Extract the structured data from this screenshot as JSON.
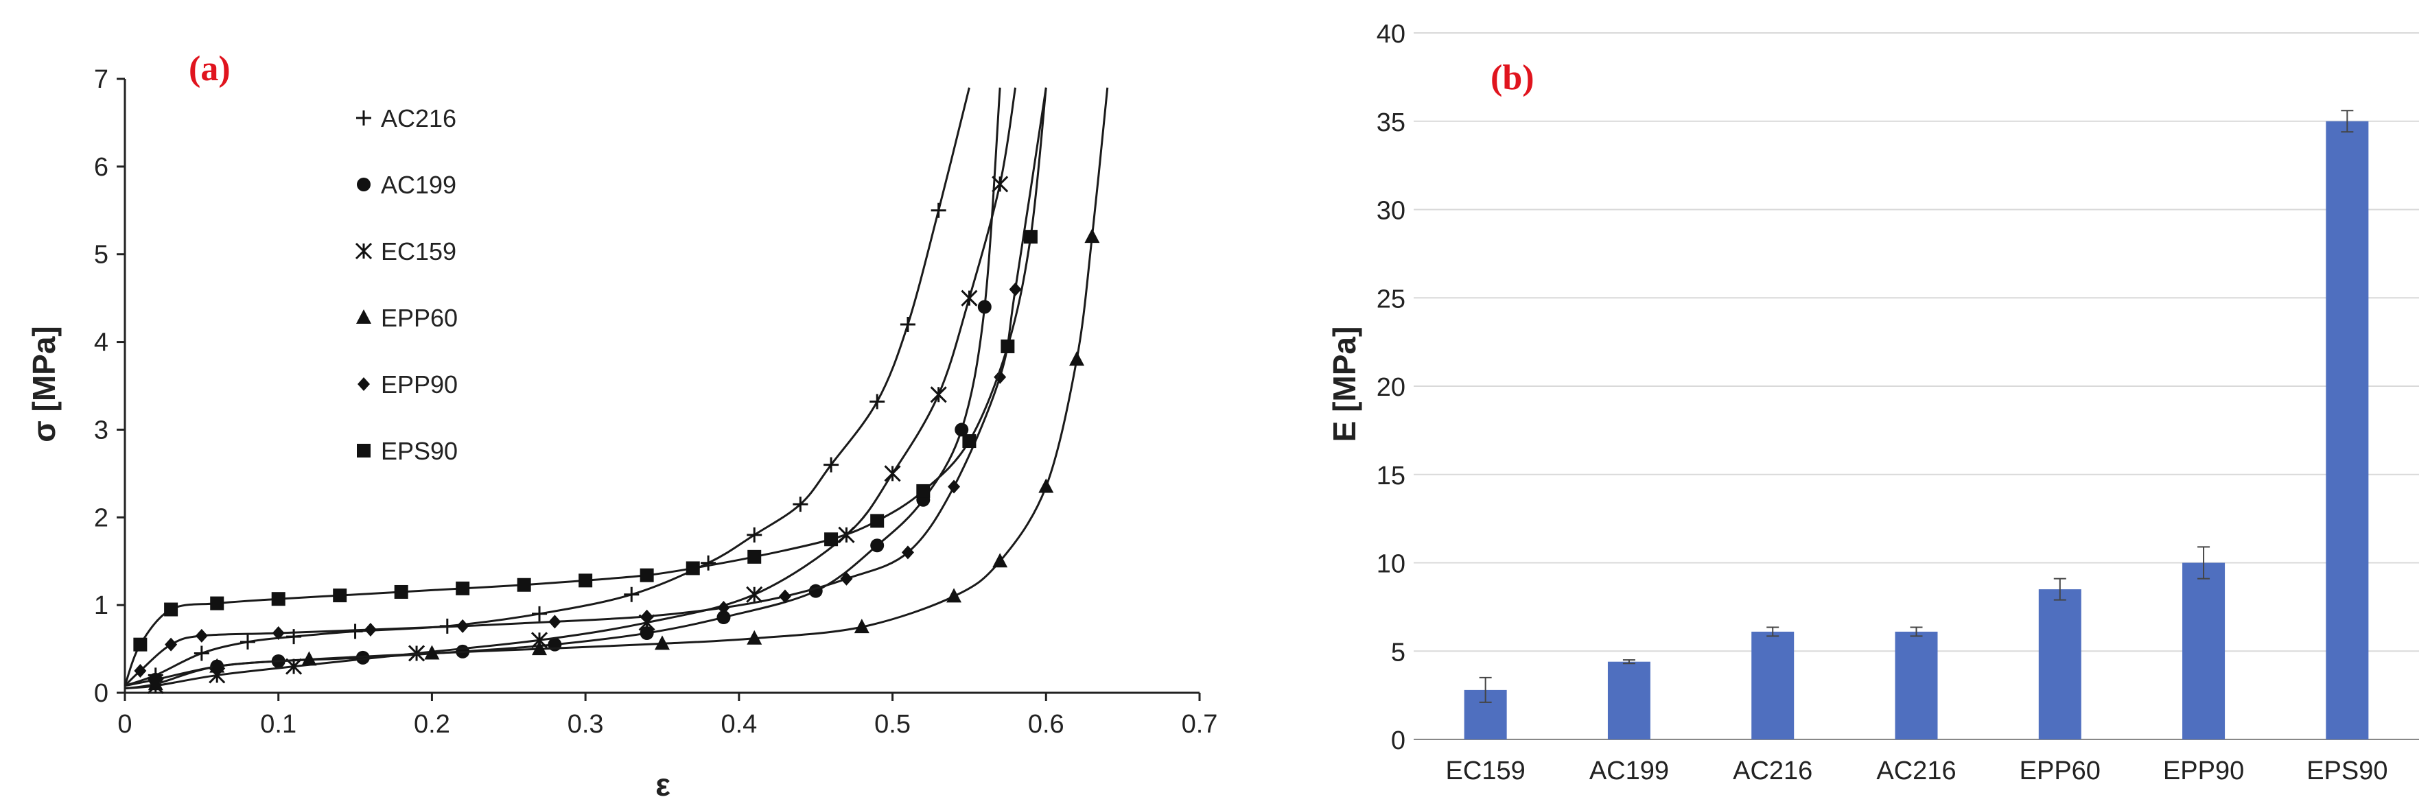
{
  "chart_data": [
    {
      "type": "line",
      "panel_label": "(a)",
      "xlabel": "ε",
      "ylabel": "σ [MPa]",
      "xlim": [
        0,
        0.7
      ],
      "ylim": [
        0,
        7
      ],
      "xticks": [
        "0",
        "0.1",
        "0.2",
        "0.3",
        "0.4",
        "0.5",
        "0.6",
        "0.7"
      ],
      "yticks": [
        "0",
        "1",
        "2",
        "3",
        "4",
        "5",
        "6",
        "7"
      ],
      "grid": false,
      "legend_position": "top-left",
      "series": [
        {
          "name": "AC216",
          "marker": "plus",
          "x": [
            0,
            0.02,
            0.05,
            0.08,
            0.11,
            0.15,
            0.21,
            0.27,
            0.33,
            0.38,
            0.41,
            0.44,
            0.46,
            0.49,
            0.51,
            0.53,
            0.55
          ],
          "y": [
            0.08,
            0.2,
            0.45,
            0.58,
            0.64,
            0.7,
            0.76,
            0.9,
            1.12,
            1.48,
            1.8,
            2.15,
            2.6,
            3.32,
            4.2,
            5.5,
            6.9
          ]
        },
        {
          "name": "AC199",
          "marker": "circle",
          "x": [
            0,
            0.02,
            0.06,
            0.1,
            0.155,
            0.22,
            0.28,
            0.34,
            0.39,
            0.45,
            0.49,
            0.52,
            0.545,
            0.56,
            0.57
          ],
          "y": [
            0.08,
            0.15,
            0.3,
            0.36,
            0.4,
            0.47,
            0.55,
            0.68,
            0.86,
            1.16,
            1.68,
            2.2,
            3.0,
            4.4,
            6.9
          ]
        },
        {
          "name": "EC159",
          "marker": "asterisk",
          "x": [
            0,
            0.02,
            0.06,
            0.11,
            0.19,
            0.27,
            0.34,
            0.41,
            0.47,
            0.5,
            0.53,
            0.55,
            0.57,
            0.58
          ],
          "y": [
            0.05,
            0.08,
            0.2,
            0.3,
            0.45,
            0.6,
            0.8,
            1.12,
            1.8,
            2.5,
            3.4,
            4.5,
            5.8,
            6.9
          ]
        },
        {
          "name": "EPP60",
          "marker": "triangle",
          "x": [
            0,
            0.02,
            0.06,
            0.12,
            0.2,
            0.27,
            0.35,
            0.41,
            0.48,
            0.54,
            0.57,
            0.6,
            0.62,
            0.63,
            0.64
          ],
          "y": [
            0.05,
            0.1,
            0.3,
            0.38,
            0.45,
            0.5,
            0.56,
            0.62,
            0.75,
            1.1,
            1.5,
            2.35,
            3.8,
            5.2,
            6.9
          ]
        },
        {
          "name": "EPP90",
          "marker": "diamond",
          "x": [
            0,
            0.01,
            0.03,
            0.05,
            0.1,
            0.16,
            0.22,
            0.28,
            0.34,
            0.39,
            0.43,
            0.47,
            0.51,
            0.54,
            0.57,
            0.58,
            0.6
          ],
          "y": [
            0.08,
            0.25,
            0.55,
            0.65,
            0.68,
            0.72,
            0.76,
            0.81,
            0.87,
            0.97,
            1.1,
            1.3,
            1.6,
            2.35,
            3.6,
            4.6,
            6.9
          ]
        },
        {
          "name": "EPS90",
          "marker": "square",
          "x": [
            0,
            0.01,
            0.03,
            0.06,
            0.1,
            0.14,
            0.18,
            0.22,
            0.26,
            0.3,
            0.34,
            0.37,
            0.41,
            0.46,
            0.49,
            0.52,
            0.55,
            0.575,
            0.59,
            0.6
          ],
          "y": [
            0.08,
            0.55,
            0.95,
            1.02,
            1.07,
            1.11,
            1.15,
            1.19,
            1.23,
            1.28,
            1.34,
            1.42,
            1.55,
            1.75,
            1.96,
            2.3,
            2.87,
            3.95,
            5.2,
            6.9
          ]
        }
      ]
    },
    {
      "type": "bar",
      "panel_label": "(b)",
      "xlabel": "",
      "ylabel": "E [MPa]",
      "ylim": [
        0,
        40
      ],
      "yticks": [
        "0",
        "5",
        "10",
        "15",
        "20",
        "25",
        "30",
        "35",
        "40"
      ],
      "grid": true,
      "bar_color": "#4f6fbf",
      "categories": [
        "EC159",
        "AC199",
        "AC216",
        "AC216",
        "EPP60",
        "EPP90",
        "EPS90"
      ],
      "values": [
        2.8,
        4.4,
        6.1,
        6.1,
        8.5,
        10.0,
        35.0
      ],
      "errors": [
        0.7,
        0.1,
        0.25,
        0.25,
        0.6,
        0.9,
        0.6
      ]
    }
  ]
}
